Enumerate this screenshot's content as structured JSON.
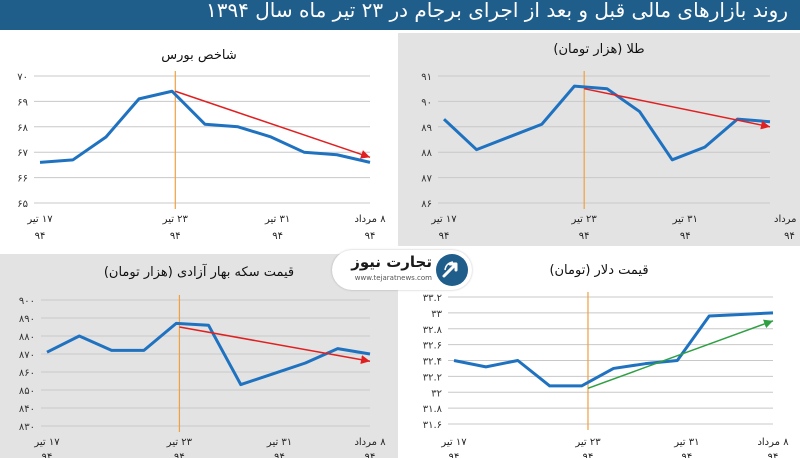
{
  "title": "روند بازارهای مالی قبل و بعد از اجرای برجام در ۲۳ تیر ماه سال ۱۳۹۴",
  "logo": {
    "name": "تجارت نیوز",
    "url": "www.tejaratnews.com"
  },
  "colors": {
    "banner": "#1f5d8a",
    "line": "#1f72c0",
    "trend_red": "#e02020",
    "trend_green": "#2ea043",
    "marker": "#f0a040"
  },
  "chart_data": [
    {
      "id": "bourse",
      "type": "line",
      "title": "شاخص بورس",
      "background": "#ffffff",
      "ylim": [
        65,
        70
      ],
      "yticks": [
        65,
        66,
        67,
        68,
        69,
        70
      ],
      "ytick_labels": [
        "۶۵",
        "۶۶",
        "۶۷",
        "۶۸",
        "۶۹",
        "۷۰"
      ],
      "x": [
        0,
        1,
        2,
        3,
        4,
        5,
        6,
        7,
        8,
        9
      ],
      "values": [
        66.6,
        66.7,
        67.6,
        69.1,
        69.4,
        68.1,
        68.0,
        67.6,
        67.0,
        66.9
      ],
      "xlim": [
        0,
        10
      ],
      "end_value": 66.6,
      "xtick_positions": [
        0,
        4.1,
        7.2,
        10
      ],
      "xtick_labels": [
        [
          "۱۷ تیر",
          "۹۴"
        ],
        [
          "۲۳ تیر",
          "۹۴"
        ],
        [
          "۳۱ تیر",
          "۹۴"
        ],
        [
          "۸ مرداد",
          "۹۴"
        ]
      ],
      "marker_x": 4.1,
      "trend": {
        "color": "red",
        "from": [
          4.1,
          69.4
        ],
        "to": [
          10,
          66.8
        ]
      }
    },
    {
      "id": "gold",
      "type": "line",
      "title": "طلا (هزار تومان)",
      "background": "#e3e3e3",
      "ylim": [
        86,
        91
      ],
      "yticks": [
        86,
        87,
        88,
        89,
        90,
        91
      ],
      "ytick_labels": [
        "۸۶",
        "۸۷",
        "۸۸",
        "۸۹",
        "۹۰",
        "۹۱"
      ],
      "x": [
        0,
        1,
        2,
        3,
        4,
        5,
        6,
        7,
        8,
        9,
        10
      ],
      "values": [
        89.3,
        88.1,
        88.6,
        89.1,
        90.6,
        90.5,
        89.6,
        87.7,
        88.2,
        89.3,
        89.2
      ],
      "xlim": [
        0,
        10
      ],
      "xtick_positions": [
        0,
        4.3,
        7.4,
        10.6
      ],
      "xtick_labels": [
        [
          "۱۷ تیر",
          "۹۴"
        ],
        [
          "۲۳ تیر",
          "۹۴"
        ],
        [
          "۳۱ تیر",
          "۹۴"
        ],
        [
          "۸ مرداد",
          "۹۴"
        ]
      ],
      "marker_x": 4.3,
      "trend": {
        "color": "red",
        "from": [
          4.3,
          90.5
        ],
        "to": [
          10,
          89.0
        ]
      }
    },
    {
      "id": "coin",
      "type": "line",
      "title": "قیمت سکه بهار آزادی (هزار تومان)",
      "background": "#e3e3e3",
      "ylim": [
        830,
        900
      ],
      "yticks": [
        830,
        840,
        850,
        860,
        870,
        880,
        890,
        900
      ],
      "ytick_labels": [
        "۸۳۰",
        "۸۴۰",
        "۸۵۰",
        "۸۶۰",
        "۸۷۰",
        "۸۸۰",
        "۸۹۰",
        "۹۰۰"
      ],
      "x": [
        0,
        1,
        2,
        3,
        4,
        5,
        6,
        7,
        8,
        9
      ],
      "values": [
        871,
        880,
        872,
        872,
        887,
        886,
        853,
        859,
        865,
        873
      ],
      "xlim": [
        0,
        10
      ],
      "end_value": 870,
      "xtick_positions": [
        0,
        4.1,
        7.2,
        10
      ],
      "xtick_labels": [
        [
          "۱۷ تیر",
          "۹۴"
        ],
        [
          "۲۳ تیر",
          "۹۴"
        ],
        [
          "۳۱ تیر",
          "۹۴"
        ],
        [
          "۸ مرداد",
          "۹۴"
        ]
      ],
      "marker_x": 4.1,
      "trend": {
        "color": "red",
        "from": [
          4.1,
          885
        ],
        "to": [
          10,
          866
        ]
      }
    },
    {
      "id": "dollar",
      "type": "line",
      "title": "قیمت دلار (تومان)",
      "background": "#ffffff",
      "ylim": [
        31.6,
        33.2
      ],
      "yticks": [
        31.6,
        31.8,
        32,
        32.2,
        32.4,
        32.6,
        32.8,
        33,
        33.2
      ],
      "ytick_labels": [
        "۳۱.۶",
        "۳۱.۸",
        "۳۲",
        "۳۲.۲",
        "۳۲.۴",
        "۳۲.۶",
        "۳۲.۸",
        "۳۳",
        "۳۳.۲"
      ],
      "x": [
        0,
        1,
        2,
        3,
        4,
        5,
        6,
        7,
        8,
        9,
        10
      ],
      "values": [
        32.4,
        32.32,
        32.4,
        32.08,
        32.08,
        32.3,
        32.36,
        32.4,
        32.96,
        32.98,
        33.0
      ],
      "xlim": [
        0,
        10
      ],
      "xtick_positions": [
        0,
        4.2,
        7.3,
        10
      ],
      "xtick_labels": [
        [
          "۱۷ تیر",
          "۹۴"
        ],
        [
          "۲۳ تیر",
          "۹۴"
        ],
        [
          "۳۱ تیر",
          "۹۴"
        ],
        [
          "۸ مرداد",
          "۹۴"
        ]
      ],
      "marker_x": 4.2,
      "trend": {
        "color": "green",
        "from": [
          4.2,
          32.05
        ],
        "to": [
          10,
          32.9
        ]
      }
    }
  ]
}
